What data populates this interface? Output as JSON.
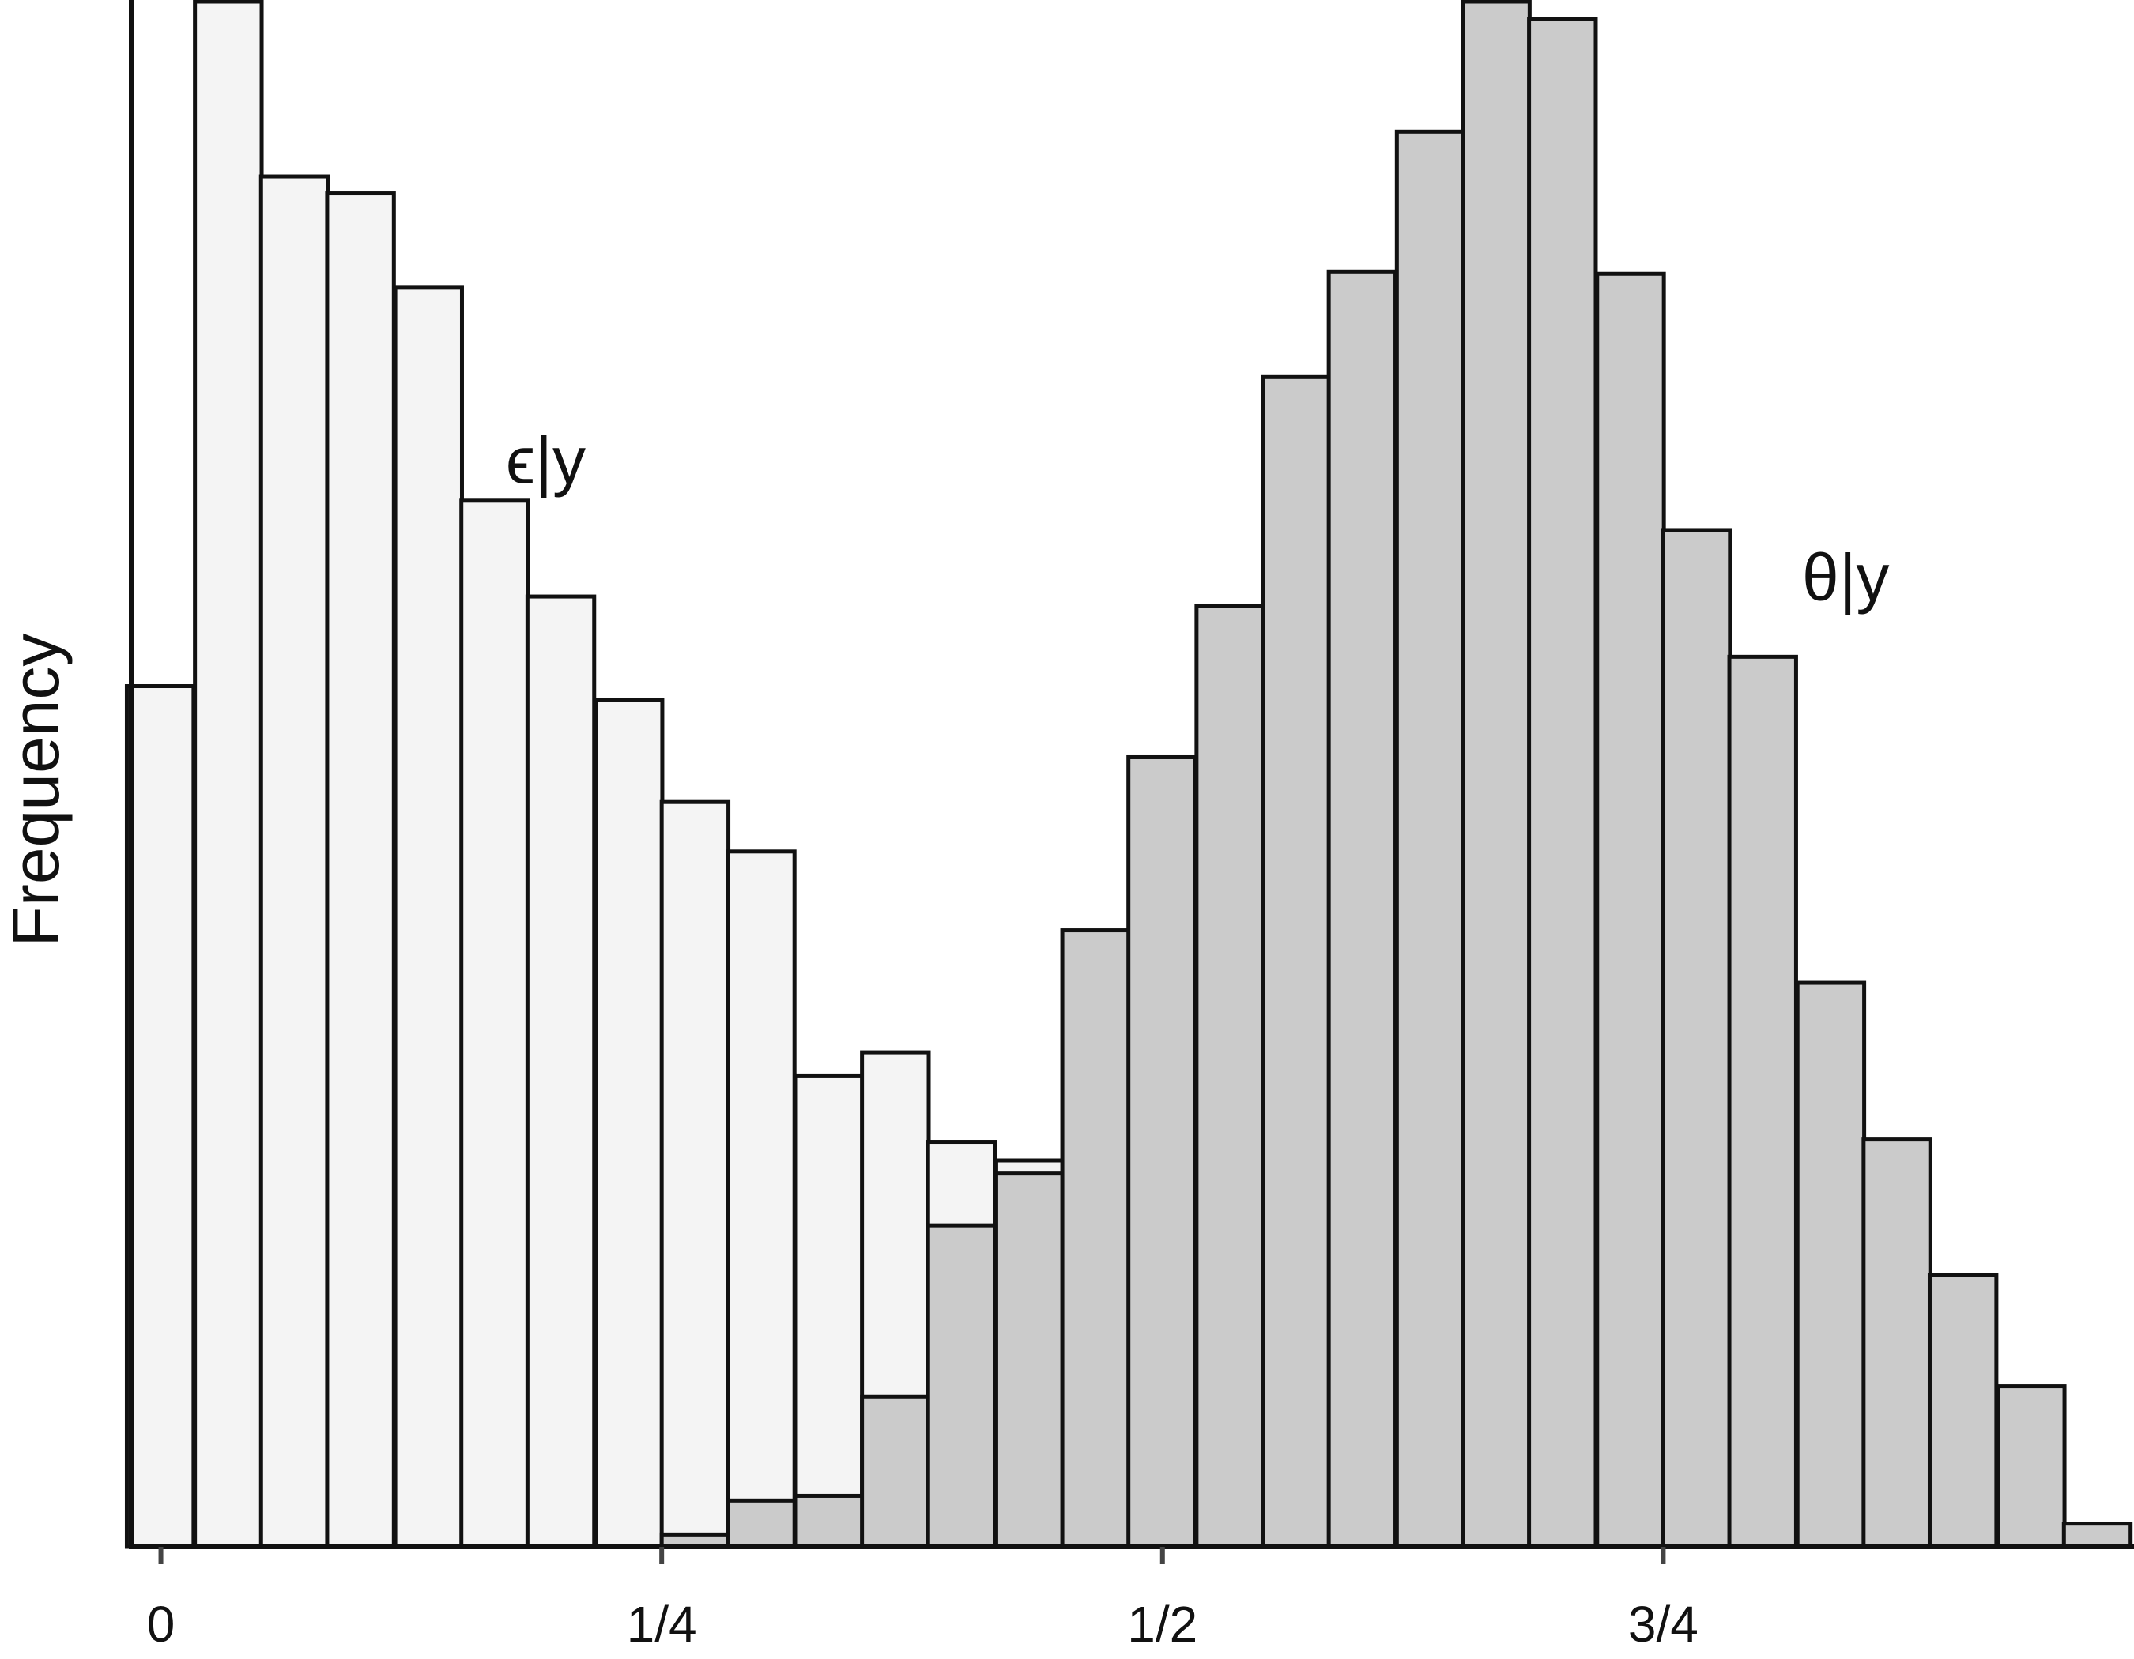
{
  "chart_data": {
    "type": "bar",
    "subtype": "overlaid-histogram",
    "ylabel": "Frequency",
    "xlabel": "",
    "xlim": [
      -0.016,
      0.985
    ],
    "ylim": [
      0,
      1000
    ],
    "y_ticks_shown": false,
    "grid": false,
    "legend": "none",
    "bin_width": 0.0333,
    "x_ticks": [
      {
        "value": 0,
        "label": "0"
      },
      {
        "value": 0.25,
        "label": "1/4"
      },
      {
        "value": 0.5,
        "label": "1/2"
      },
      {
        "value": 0.75,
        "label": "3/4"
      }
    ],
    "annotations": [
      {
        "text": "ϵ|y",
        "series": "epsilon"
      },
      {
        "text": "θ|y",
        "series": "theta"
      }
    ],
    "colors": {
      "epsilon_fill": "#f4f4f4",
      "theta_fill": "#cbcbcb",
      "stroke": "#111111"
    },
    "series": [
      {
        "id": "epsilon",
        "bin_starts": [
          -0.017,
          0.017,
          0.05,
          0.083,
          0.117,
          0.15,
          0.183,
          0.217,
          0.25,
          0.283,
          0.317,
          0.35,
          0.383,
          0.417,
          0.45,
          0.483,
          0.517,
          0.55,
          0.583,
          0.617,
          0.65,
          0.683
        ],
        "values": [
          557,
          1000,
          887,
          876,
          815,
          677,
          615,
          548,
          482,
          450,
          305,
          320,
          262,
          250,
          142,
          85,
          56,
          30,
          26,
          20,
          14,
          4
        ]
      },
      {
        "id": "theta",
        "bin_starts": [
          0.25,
          0.283,
          0.317,
          0.35,
          0.383,
          0.417,
          0.45,
          0.483,
          0.517,
          0.55,
          0.583,
          0.617,
          0.65,
          0.683,
          0.717,
          0.75,
          0.783,
          0.817,
          0.85,
          0.883,
          0.917,
          0.95
        ],
        "values": [
          8,
          30,
          33,
          97,
          208,
          242,
          399,
          511,
          609,
          757,
          825,
          916,
          1000,
          989,
          824,
          658,
          576,
          365,
          264,
          176,
          104,
          15
        ]
      }
    ]
  }
}
